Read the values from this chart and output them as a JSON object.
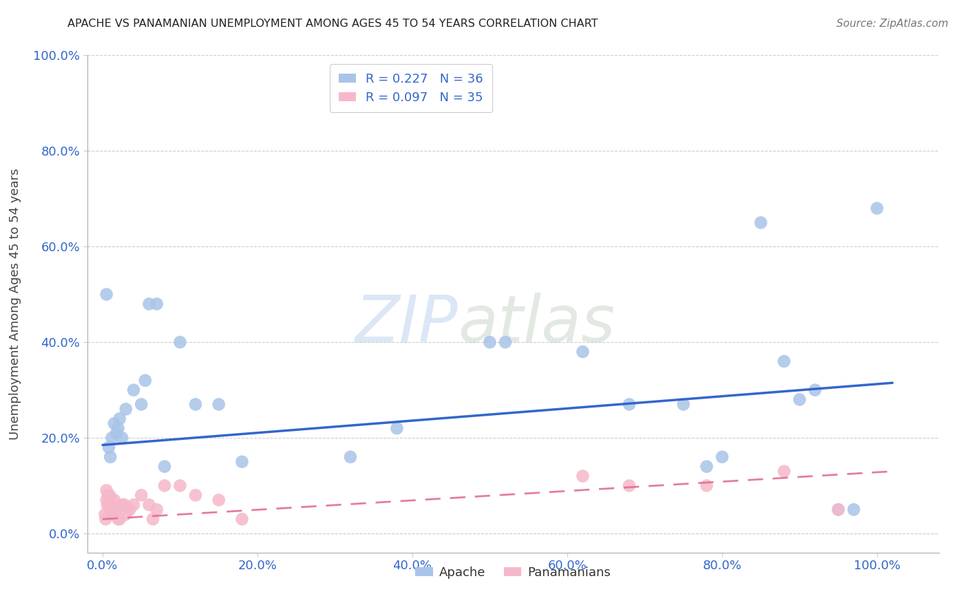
{
  "title": "APACHE VS PANAMANIAN UNEMPLOYMENT AMONG AGES 45 TO 54 YEARS CORRELATION CHART",
  "source": "Source: ZipAtlas.com",
  "xlabel_ticks": [
    "0.0%",
    "20.0%",
    "40.0%",
    "60.0%",
    "80.0%",
    "100.0%"
  ],
  "xlabel_vals": [
    0.0,
    0.2,
    0.4,
    0.6,
    0.8,
    1.0
  ],
  "ylabel": "Unemployment Among Ages 45 to 54 years",
  "ylabel_ticks": [
    "0.0%",
    "20.0%",
    "40.0%",
    "60.0%",
    "80.0%",
    "100.0%"
  ],
  "ylabel_vals": [
    0.0,
    0.2,
    0.4,
    0.6,
    0.8,
    1.0
  ],
  "xlim": [
    -0.02,
    1.08
  ],
  "ylim": [
    -0.04,
    0.92
  ],
  "apache_color": "#A8C4E8",
  "panamanian_color": "#F5B8C8",
  "apache_line_color": "#3366CC",
  "panamanian_line_color": "#E07090",
  "apache_R": 0.227,
  "apache_N": 36,
  "panamanian_R": 0.097,
  "panamanian_N": 35,
  "legend_label_apache": "Apache",
  "legend_label_panamanian": "Panamanians",
  "apache_scatter_x": [
    0.005,
    0.008,
    0.01,
    0.012,
    0.015,
    0.018,
    0.02,
    0.022,
    0.025,
    0.03,
    0.04,
    0.05,
    0.055,
    0.06,
    0.07,
    0.08,
    0.1,
    0.12,
    0.15,
    0.18,
    0.32,
    0.38,
    0.5,
    0.52,
    0.62,
    0.68,
    0.75,
    0.8,
    0.85,
    0.88,
    0.92,
    0.95,
    0.97,
    1.0,
    0.9,
    0.78
  ],
  "apache_scatter_y": [
    0.5,
    0.18,
    0.16,
    0.2,
    0.23,
    0.21,
    0.22,
    0.24,
    0.2,
    0.26,
    0.3,
    0.27,
    0.32,
    0.48,
    0.48,
    0.14,
    0.4,
    0.27,
    0.27,
    0.15,
    0.16,
    0.22,
    0.4,
    0.4,
    0.38,
    0.27,
    0.27,
    0.16,
    0.65,
    0.36,
    0.3,
    0.05,
    0.05,
    0.68,
    0.28,
    0.14
  ],
  "panamanian_scatter_x": [
    0.003,
    0.004,
    0.005,
    0.005,
    0.006,
    0.007,
    0.008,
    0.009,
    0.01,
    0.011,
    0.012,
    0.013,
    0.015,
    0.017,
    0.02,
    0.022,
    0.025,
    0.028,
    0.03,
    0.035,
    0.04,
    0.05,
    0.06,
    0.065,
    0.07,
    0.08,
    0.1,
    0.12,
    0.15,
    0.18,
    0.62,
    0.68,
    0.78,
    0.88,
    0.95
  ],
  "panamanian_scatter_y": [
    0.04,
    0.03,
    0.07,
    0.09,
    0.06,
    0.08,
    0.06,
    0.08,
    0.07,
    0.04,
    0.05,
    0.05,
    0.07,
    0.05,
    0.03,
    0.03,
    0.06,
    0.06,
    0.04,
    0.05,
    0.06,
    0.08,
    0.06,
    0.03,
    0.05,
    0.1,
    0.1,
    0.08,
    0.07,
    0.03,
    0.12,
    0.1,
    0.1,
    0.13,
    0.05
  ],
  "watermark_zip": "ZIP",
  "watermark_atlas": "atlas",
  "background_color": "#ffffff",
  "grid_color": "#cccccc",
  "apache_trendline_x": [
    0.0,
    1.02
  ],
  "apache_trendline_y": [
    0.185,
    0.315
  ],
  "panamanian_trendline_x": [
    0.0,
    1.02
  ],
  "panamanian_trendline_y": [
    0.03,
    0.13
  ]
}
